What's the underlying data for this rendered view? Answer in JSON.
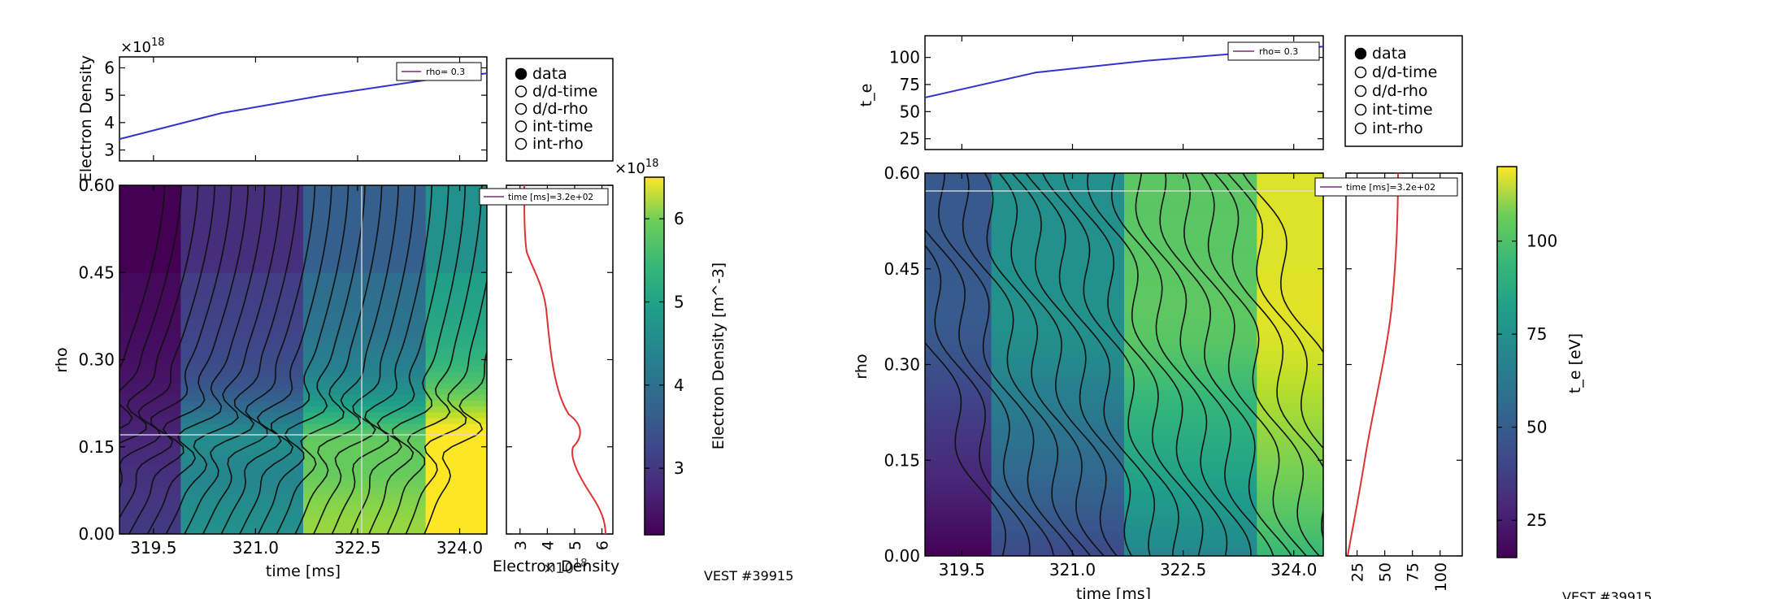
{
  "chart_data": [
    {
      "type": "line",
      "panel": "left-top-timetrace",
      "ylabel": "Electron Density",
      "multiplier": "×10",
      "multiplier_exp": "18",
      "legend": "rho=   0.3",
      "yticks": [
        "3",
        "4",
        "5",
        "6"
      ],
      "ylim": [
        2.6,
        6.4
      ],
      "x": [
        319.0,
        320.5,
        322.0,
        323.5,
        324.4
      ],
      "y": [
        3.4,
        4.35,
        5.0,
        5.55,
        5.8
      ],
      "color": "#3333cc"
    },
    {
      "type": "heatmap",
      "panel": "left-main",
      "xlabel": "time [ms]",
      "ylabel": "rho",
      "xticks": [
        "319.5",
        "321.0",
        "322.5",
        "324.0"
      ],
      "yticks": [
        "0.00",
        "0.15",
        "0.30",
        "0.45",
        "0.60"
      ],
      "xlim": [
        319.0,
        324.4
      ],
      "ylim": [
        0.0,
        0.6
      ],
      "time_bins": [
        319.0,
        319.9,
        321.7,
        323.5,
        324.4
      ],
      "quantity": "Electron Density",
      "cursor_time": 322.6,
      "cursor_rho": 0.17
    },
    {
      "type": "line",
      "panel": "left-profile",
      "xlabel": "Electron Density",
      "multiplier": "×10",
      "multiplier_exp": "18",
      "legend": "time [ms]=3.2e+02",
      "xticks": [
        "3",
        "4",
        "5",
        "6"
      ],
      "xlim": [
        2.5,
        6.4
      ],
      "color": "#dd3333"
    },
    {
      "type": "colorbar",
      "panel": "left-colorbar",
      "label": "Electron Density [m^-3]",
      "multiplier": "×10",
      "multiplier_exp": "18",
      "ticks": [
        "3",
        "4",
        "5",
        "6"
      ],
      "range": [
        2.2,
        6.5
      ]
    },
    {
      "type": "line",
      "panel": "right-top-timetrace",
      "ylabel": "t_e",
      "legend": "rho=   0.3",
      "yticks": [
        "25",
        "50",
        "75",
        "100"
      ],
      "ylim": [
        15,
        120
      ],
      "x": [
        319.0,
        320.5,
        322.0,
        323.5,
        324.4
      ],
      "y": [
        63,
        86,
        97,
        105,
        110
      ],
      "color": "#3333cc"
    },
    {
      "type": "heatmap",
      "panel": "right-main",
      "xlabel": "time [ms]",
      "ylabel": "rho",
      "xticks": [
        "319.5",
        "321.0",
        "322.5",
        "324.0"
      ],
      "yticks": [
        "0.00",
        "0.15",
        "0.30",
        "0.45",
        "0.60"
      ],
      "xlim": [
        319.0,
        324.4
      ],
      "ylim": [
        0.0,
        0.6
      ],
      "time_bins": [
        319.0,
        319.9,
        321.7,
        323.5,
        324.4
      ],
      "quantity": "t_e",
      "cursor_time": 322.6,
      "cursor_rho": 0.57
    },
    {
      "type": "line",
      "panel": "right-profile",
      "xticks": [
        "25",
        "50",
        "75",
        "100"
      ],
      "xlim": [
        15,
        120
      ],
      "legend": "time [ms]=3.2e+02",
      "color": "#dd3333"
    },
    {
      "type": "colorbar",
      "panel": "right-colorbar",
      "label": "t_e [eV]",
      "ticks": [
        "25",
        "50",
        "75",
        "100"
      ],
      "range": [
        15,
        120
      ]
    }
  ],
  "radio": {
    "options": [
      "data",
      "d/d-time",
      "d/d-rho",
      "int-time",
      "int-rho"
    ],
    "selected": "data"
  },
  "left_footer": "VEST #39915",
  "right_footer": "VEST #39915"
}
